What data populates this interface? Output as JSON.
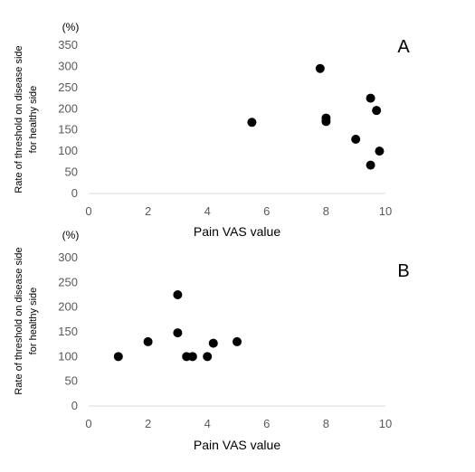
{
  "chart_data": [
    {
      "type": "scatter",
      "panel_label": "A",
      "ylabel": "Rate of threshold  on disease side for healthy side",
      "ylabel_lines": [
        "Rate of threshold  on disease side",
        "for healthy side"
      ],
      "yunit": "(%)",
      "xlabel": "Pain VAS value",
      "xlim": [
        0,
        10
      ],
      "ylim": [
        0,
        350
      ],
      "xticks": [
        0,
        2,
        4,
        6,
        8,
        10
      ],
      "yticks": [
        0,
        50,
        100,
        150,
        200,
        250,
        300,
        350
      ],
      "grid": false,
      "points": [
        {
          "x": 5.5,
          "y": 168
        },
        {
          "x": 7.8,
          "y": 295
        },
        {
          "x": 8.0,
          "y": 178
        },
        {
          "x": 8.0,
          "y": 170
        },
        {
          "x": 9.0,
          "y": 128
        },
        {
          "x": 9.5,
          "y": 225
        },
        {
          "x": 9.7,
          "y": 196
        },
        {
          "x": 9.8,
          "y": 100
        },
        {
          "x": 9.5,
          "y": 67
        }
      ]
    },
    {
      "type": "scatter",
      "panel_label": "B",
      "ylabel": "Rate of threshold  on disease side for healthy side",
      "ylabel_lines": [
        "Rate of threshold  on disease side",
        "for healthy side"
      ],
      "yunit": "(%)",
      "xlabel": "Pain VAS value",
      "xlim": [
        0,
        10
      ],
      "ylim": [
        0,
        300
      ],
      "xticks": [
        0,
        2,
        4,
        6,
        8,
        10
      ],
      "yticks": [
        0,
        50,
        100,
        150,
        200,
        250,
        300
      ],
      "grid": false,
      "points": [
        {
          "x": 1.0,
          "y": 100
        },
        {
          "x": 2.0,
          "y": 130
        },
        {
          "x": 3.0,
          "y": 225
        },
        {
          "x": 3.0,
          "y": 148
        },
        {
          "x": 3.3,
          "y": 100
        },
        {
          "x": 3.5,
          "y": 100
        },
        {
          "x": 4.0,
          "y": 100
        },
        {
          "x": 4.2,
          "y": 127
        },
        {
          "x": 5.0,
          "y": 130
        }
      ]
    }
  ],
  "colors": {
    "marker": "#000000",
    "axis": "#d9d9d9",
    "tick_text": "#595959",
    "label_text": "#000000"
  }
}
